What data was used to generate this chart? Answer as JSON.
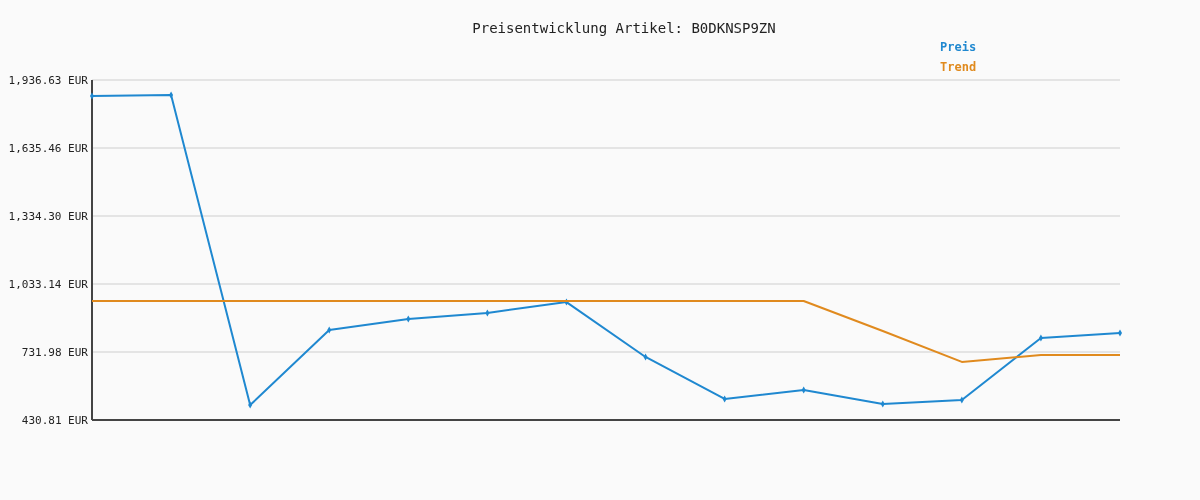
{
  "chart_data": {
    "type": "line",
    "title": "Preisentwicklung Artikel: B0DKNSP9ZN",
    "categories": [
      null,
      null,
      null,
      null,
      null,
      null,
      null,
      null,
      null,
      null,
      null,
      null,
      null,
      null
    ],
    "series": [
      {
        "name": "Preis",
        "color": "#1f88d0",
        "marker": "diamond",
        "values": [
          1866,
          1870,
          497,
          829,
          878,
          905,
          953,
          710,
          524,
          564,
          502,
          519,
          794,
          816
        ]
      },
      {
        "name": "Trend",
        "color": "#e08a1e",
        "marker": "none",
        "values": [
          958,
          958,
          958,
          958,
          958,
          958,
          958,
          958,
          958,
          958,
          825,
          688,
          719,
          719
        ]
      }
    ],
    "ylim": [
      430.81,
      1936.63
    ],
    "yticks": [
      {
        "value": 430.81,
        "label": "430.81 EUR"
      },
      {
        "value": 731.98,
        "label": "731.98 EUR"
      },
      {
        "value": 1033.14,
        "label": "1,033.14 EUR"
      },
      {
        "value": 1334.3,
        "label": "1,334.30 EUR"
      },
      {
        "value": 1635.46,
        "label": "1,635.46 EUR"
      },
      {
        "value": 1936.63,
        "label": "1,936.63 EUR"
      }
    ],
    "grid": "y",
    "legend": "top right",
    "line_style": "solid"
  }
}
